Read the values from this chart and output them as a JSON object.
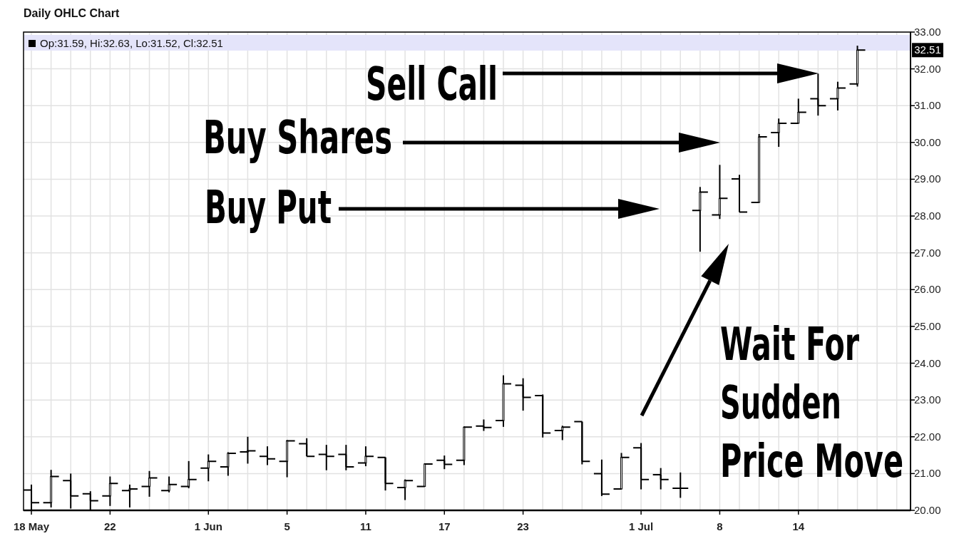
{
  "chart_data": {
    "type": "candlestick",
    "title": "Daily OHLC Chart",
    "categories": [
      "18 May",
      null,
      null,
      null,
      "22",
      null,
      null,
      null,
      null,
      "1 Jun",
      null,
      null,
      null,
      "5",
      null,
      null,
      null,
      "11",
      null,
      null,
      null,
      "17",
      null,
      null,
      null,
      "23",
      null,
      null,
      null,
      null,
      null,
      "1 Jul",
      null,
      null,
      null,
      "8",
      null,
      null,
      null,
      "14",
      null,
      null,
      null
    ],
    "ohlc": [
      [
        20.55,
        20.7,
        20.0,
        20.21
      ],
      [
        20.21,
        21.1,
        20.08,
        20.92
      ],
      [
        20.81,
        21.0,
        20.05,
        20.39
      ],
      [
        20.45,
        20.52,
        20.0,
        20.26
      ],
      [
        20.39,
        20.92,
        20.12,
        20.73
      ],
      [
        20.54,
        20.7,
        20.08,
        20.58
      ],
      [
        20.65,
        21.07,
        20.37,
        20.88
      ],
      [
        20.54,
        20.92,
        20.49,
        20.7
      ],
      [
        20.65,
        21.34,
        20.6,
        20.84
      ],
      [
        21.15,
        21.52,
        20.79,
        21.33
      ],
      [
        21.18,
        21.58,
        20.94,
        21.55
      ],
      [
        21.59,
        22.0,
        21.27,
        21.62
      ],
      [
        21.47,
        21.74,
        21.23,
        21.4
      ],
      [
        21.33,
        21.91,
        20.9,
        21.89
      ],
      [
        21.81,
        21.96,
        21.47,
        21.47
      ],
      [
        21.52,
        21.78,
        21.09,
        21.47
      ],
      [
        21.52,
        21.78,
        21.09,
        21.18
      ],
      [
        21.29,
        21.74,
        21.2,
        21.47
      ],
      [
        21.44,
        21.44,
        20.54,
        20.73
      ],
      [
        20.62,
        20.84,
        20.28,
        20.81
      ],
      [
        20.65,
        21.28,
        20.65,
        21.26
      ],
      [
        21.36,
        21.49,
        21.12,
        21.25
      ],
      [
        21.36,
        22.28,
        21.23,
        22.26
      ],
      [
        22.29,
        22.47,
        22.16,
        22.25
      ],
      [
        22.44,
        23.67,
        22.27,
        23.44
      ],
      [
        23.4,
        23.59,
        22.71,
        23.07
      ],
      [
        23.12,
        23.15,
        21.98,
        22.1
      ],
      [
        22.17,
        22.3,
        21.91,
        22.26
      ],
      [
        22.41,
        22.41,
        21.25,
        21.33
      ],
      [
        21.0,
        21.38,
        20.39,
        20.44
      ],
      [
        20.58,
        21.56,
        20.58,
        21.44
      ],
      [
        21.7,
        21.83,
        20.57,
        20.84
      ],
      [
        20.97,
        21.15,
        20.57,
        20.84
      ],
      [
        20.6,
        21.03,
        20.34,
        20.6
      ],
      [
        28.15,
        28.79,
        27.03,
        28.65
      ],
      [
        28.03,
        29.39,
        27.92,
        28.48
      ],
      [
        29.01,
        29.12,
        28.11,
        28.11
      ],
      [
        28.37,
        30.23,
        28.37,
        30.15
      ],
      [
        30.27,
        30.65,
        29.88,
        30.52
      ],
      [
        30.52,
        31.19,
        30.52,
        30.82
      ],
      [
        31.19,
        31.87,
        30.73,
        31.0
      ],
      [
        31.19,
        31.65,
        30.87,
        31.48
      ],
      [
        31.59,
        32.63,
        31.52,
        32.51
      ]
    ],
    "color": "#000000",
    "ylim": [
      20,
      33
    ],
    "yticks": [
      {
        "value": 20,
        "label": "20.00"
      },
      {
        "value": 21,
        "label": "21.00"
      },
      {
        "value": 22,
        "label": "22.00"
      },
      {
        "value": 23,
        "label": "23.00"
      },
      {
        "value": 24,
        "label": "24.00"
      },
      {
        "value": 25,
        "label": "25.00"
      },
      {
        "value": 26,
        "label": "26.00"
      },
      {
        "value": 27,
        "label": "27.00"
      },
      {
        "value": 28,
        "label": "28.00"
      },
      {
        "value": 29,
        "label": "29.00"
      },
      {
        "value": 30,
        "label": "30.00"
      },
      {
        "value": 31,
        "label": "31.00"
      },
      {
        "value": 32,
        "label": "32.00"
      },
      {
        "value": 33,
        "label": "33.00"
      }
    ],
    "grid": true,
    "annotations": [
      "Op:31.59, Hi:32.63, Lo:31.52, Cl:32.51",
      "32.51",
      "Sell Call",
      "Buy Shares",
      "Buy Put",
      "Wait For Sudden Price Move"
    ]
  }
}
